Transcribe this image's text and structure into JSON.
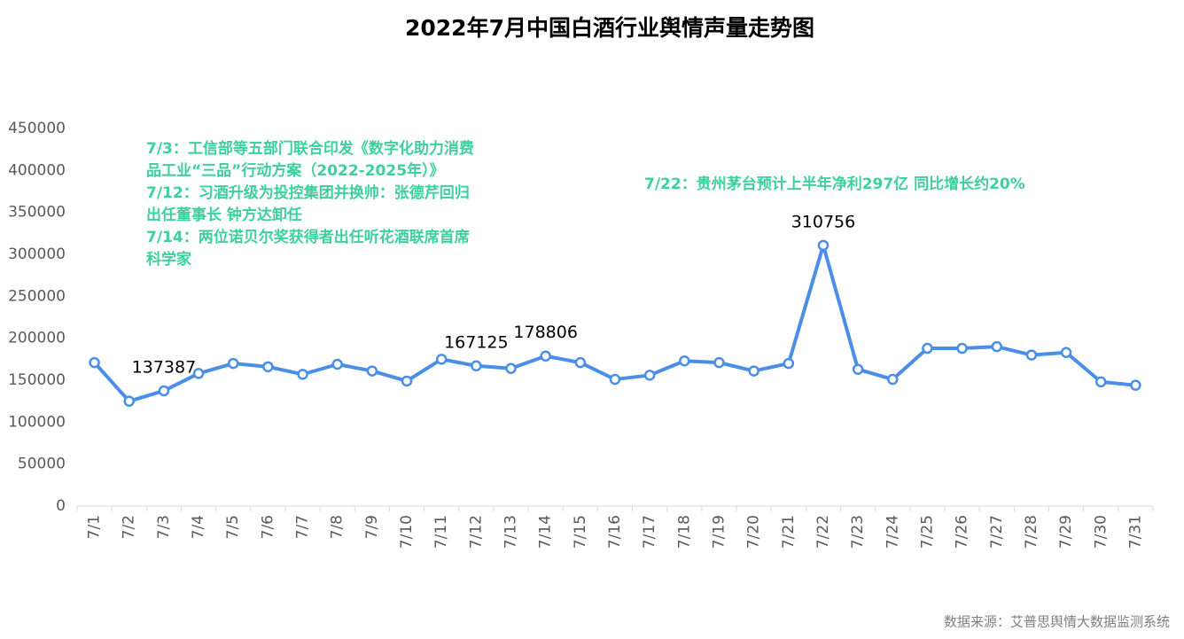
{
  "chart_data": {
    "type": "line",
    "title": "2022年7月中国白酒行业舆情声量走势图",
    "categories": [
      "7/1",
      "7/2",
      "7/3",
      "7/4",
      "7/5",
      "7/6",
      "7/7",
      "7/8",
      "7/9",
      "7/10",
      "7/11",
      "7/12",
      "7/13",
      "7/14",
      "7/15",
      "7/16",
      "7/17",
      "7/18",
      "7/19",
      "7/20",
      "7/21",
      "7/22",
      "7/23",
      "7/24",
      "7/25",
      "7/26",
      "7/27",
      "7/28",
      "7/29",
      "7/30",
      "7/31"
    ],
    "series": [
      {
        "name": "舆情声量",
        "color": "#4a8ee8",
        "values": [
          171000,
          125000,
          137387,
          158000,
          170000,
          166000,
          157000,
          169000,
          161000,
          149000,
          175000,
          167125,
          164000,
          178806,
          171000,
          151000,
          156000,
          173000,
          171000,
          161000,
          170000,
          310756,
          163000,
          151000,
          188000,
          188000,
          190000,
          180000,
          183000,
          148000,
          144000
        ],
        "value_labels": [
          null,
          null,
          "137387",
          null,
          null,
          null,
          null,
          null,
          null,
          null,
          null,
          "167125",
          null,
          "178806",
          null,
          null,
          null,
          null,
          null,
          null,
          null,
          "310756",
          null,
          null,
          null,
          null,
          null,
          null,
          null,
          null,
          null
        ]
      }
    ],
    "ylim": [
      0,
      450000
    ],
    "yticks": [
      0,
      50000,
      100000,
      150000,
      200000,
      250000,
      300000,
      350000,
      400000,
      450000
    ],
    "annotations": [
      "7/3：工信部等五部门联合印发《数字化助力消费",
      "品工业“三品”行动方案（2022-2025年）》",
      "7/12：习酒升级为投控集团并换帅：张德芹回归",
      "出任董事长 钟方达卸任",
      "7/14：两位诺贝尔奖获得者出任听花酒联席首席",
      "科学家",
      "7/22：贵州茅台预计上半年净利297亿 同比增长约20%"
    ],
    "source": "数据来源：艾普思舆情大数据监测系统"
  }
}
